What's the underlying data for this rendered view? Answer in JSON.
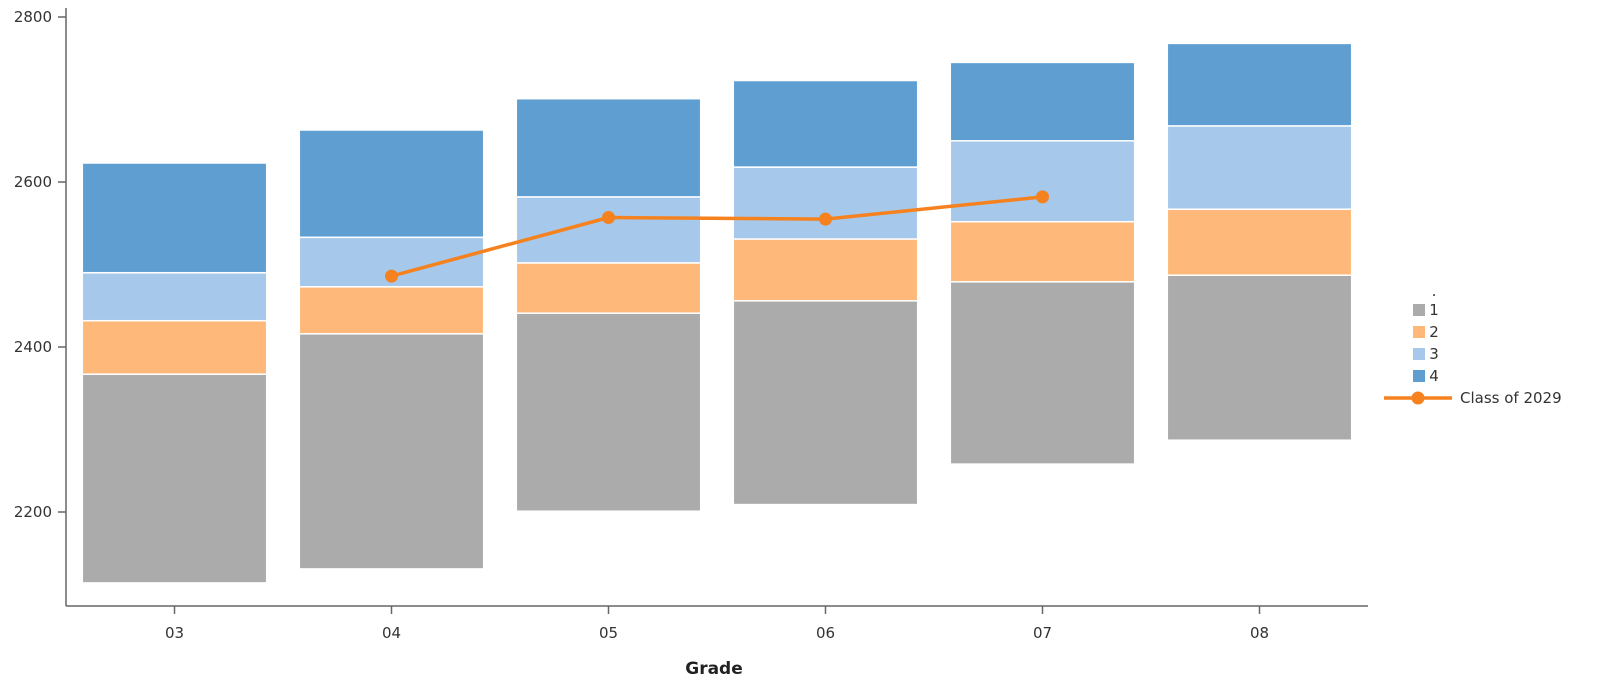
{
  "chart_data": {
    "type": "bar",
    "stacked": true,
    "xlabel": "Grade",
    "ylabel": "",
    "categories": [
      "03",
      "04",
      "05",
      "06",
      "07",
      "08"
    ],
    "ylim": [
      2090,
      2800
    ],
    "yticks": [
      2200,
      2400,
      2600,
      2800
    ],
    "ytick_labels": [
      "2200",
      "2400",
      "2600",
      "2800"
    ],
    "series": [
      {
        "name": "1",
        "color": "#ababab",
        "ranges": [
          [
            2114,
            2367
          ],
          [
            2131,
            2416
          ],
          [
            2201,
            2441
          ],
          [
            2209,
            2456
          ],
          [
            2258,
            2479
          ],
          [
            2287,
            2487
          ]
        ]
      },
      {
        "name": "2",
        "color": "#fdb87a",
        "ranges": [
          [
            2367,
            2432
          ],
          [
            2416,
            2473
          ],
          [
            2441,
            2502
          ],
          [
            2456,
            2531
          ],
          [
            2479,
            2552
          ],
          [
            2487,
            2567
          ]
        ]
      },
      {
        "name": "3",
        "color": "#a6c8eb",
        "ranges": [
          [
            2432,
            2490
          ],
          [
            2473,
            2533
          ],
          [
            2502,
            2582
          ],
          [
            2531,
            2618
          ],
          [
            2552,
            2650
          ],
          [
            2567,
            2668
          ]
        ]
      },
      {
        "name": "4",
        "color": "#5f9ed1",
        "ranges": [
          [
            2490,
            2623
          ],
          [
            2533,
            2663
          ],
          [
            2582,
            2701
          ],
          [
            2618,
            2723
          ],
          [
            2650,
            2745
          ],
          [
            2668,
            2768
          ]
        ]
      }
    ],
    "line_series": {
      "name": "Class of 2029",
      "color": "#f5821f",
      "points": [
        {
          "x": "04",
          "y": 2486
        },
        {
          "x": "05",
          "y": 2557
        },
        {
          "x": "06",
          "y": 2555
        },
        {
          "x": "07",
          "y": 2582
        }
      ]
    },
    "legend": {
      "placement": "right",
      "title": ".",
      "items": [
        {
          "label": "1",
          "color": "#ababab",
          "marker": "square"
        },
        {
          "label": "2",
          "color": "#fdb87a",
          "marker": "square"
        },
        {
          "label": "3",
          "color": "#a6c8eb",
          "marker": "square"
        },
        {
          "label": "4",
          "color": "#5f9ed1",
          "marker": "square"
        },
        {
          "label": "Class of 2029",
          "color": "#f5821f",
          "marker": "line-dot"
        }
      ]
    },
    "grid": false
  }
}
